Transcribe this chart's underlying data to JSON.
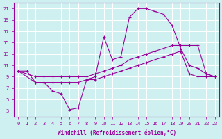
{
  "xlabel": "Windchill (Refroidissement éolien,°C)",
  "background_color": "#cef0f0",
  "grid_color": "#ffffff",
  "line_color": "#990099",
  "xlim": [
    -0.5,
    23.5
  ],
  "ylim": [
    2,
    22
  ],
  "xticks": [
    0,
    1,
    2,
    3,
    4,
    5,
    6,
    7,
    8,
    9,
    10,
    11,
    12,
    13,
    14,
    15,
    16,
    17,
    18,
    19,
    20,
    21,
    22,
    23
  ],
  "yticks": [
    3,
    5,
    7,
    9,
    11,
    13,
    15,
    17,
    19,
    21
  ],
  "line1_x": [
    0,
    1,
    2,
    3,
    4,
    5,
    6,
    7,
    8,
    9,
    10,
    11,
    12,
    13,
    14,
    15,
    16,
    17,
    18,
    19,
    20,
    21,
    22,
    23
  ],
  "line1_y": [
    10.0,
    10.0,
    8.0,
    8.0,
    6.5,
    6.0,
    3.2,
    3.5,
    8.5,
    9.0,
    16.0,
    12.0,
    12.5,
    19.5,
    21.0,
    21.0,
    20.5,
    20.0,
    18.0,
    14.0,
    11.0,
    10.5,
    9.5,
    9.0
  ],
  "line2_x": [
    0,
    2,
    3,
    4,
    5,
    6,
    7,
    8,
    9,
    10,
    11,
    12,
    13,
    14,
    15,
    16,
    17,
    18,
    19,
    20,
    21,
    22,
    23
  ],
  "line2_y": [
    10.0,
    9.0,
    9.0,
    9.0,
    9.0,
    9.0,
    9.0,
    9.0,
    9.5,
    10.0,
    10.5,
    11.0,
    12.0,
    12.5,
    13.0,
    13.5,
    14.0,
    14.5,
    14.5,
    14.5,
    14.5,
    9.5,
    9.0
  ],
  "line3_x": [
    0,
    2,
    3,
    4,
    5,
    6,
    7,
    8,
    9,
    10,
    11,
    12,
    13,
    14,
    15,
    16,
    17,
    18,
    19,
    20,
    21,
    22,
    23
  ],
  "line3_y": [
    10.0,
    8.0,
    8.0,
    8.0,
    8.0,
    8.0,
    8.0,
    8.5,
    8.5,
    9.0,
    9.5,
    10.0,
    10.5,
    11.0,
    11.5,
    12.0,
    12.5,
    13.0,
    13.5,
    9.5,
    9.0,
    9.0,
    9.0
  ]
}
